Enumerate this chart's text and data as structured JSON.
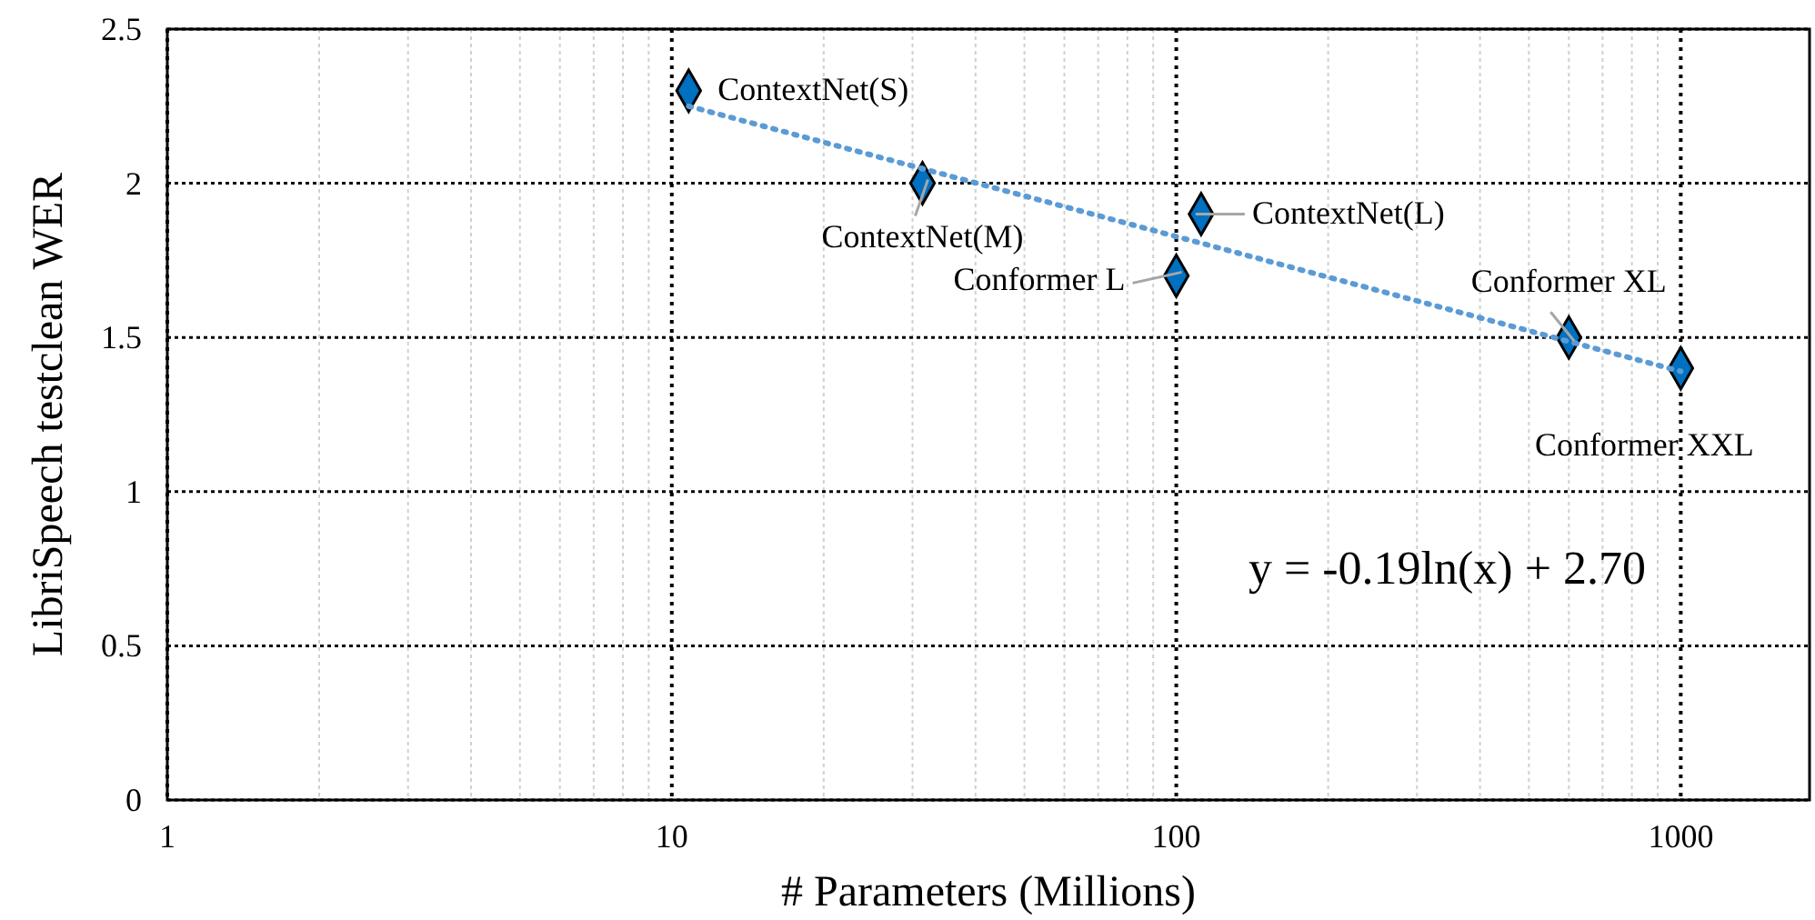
{
  "chart_data": {
    "type": "scatter",
    "xlabel": "# Parameters (Millions)",
    "ylabel": "LibriSpeech testclean WER",
    "log": "x",
    "grid": true,
    "marker": "diamond",
    "xlim": [
      1,
      1800
    ],
    "xticks": [
      1,
      10,
      100,
      1000
    ],
    "ylim": [
      0,
      2.5
    ],
    "yticks": [
      0,
      0.5,
      1,
      1.5,
      2,
      2.5
    ],
    "series": [
      {
        "color": "#0070c0",
        "x": [
          10.8,
          31.4,
          100,
          112,
          600,
          1000
        ],
        "values": [
          2.3,
          2.0,
          1.7,
          1.9,
          1.5,
          1.4
        ]
      },
      {
        "type": "line",
        "color": "#5b9bd5",
        "line_style": "dotted",
        "marker": "none",
        "x": [
          10.8,
          1000
        ],
        "values": [
          2.25,
          1.39
        ]
      }
    ],
    "annotations": [
      {
        "text": "ContextNet(S)",
        "x": 10.8,
        "y": 2.3
      },
      {
        "text": "ContextNet(M)",
        "x": 31.4,
        "y": 2.0
      },
      {
        "text": "Conformer L",
        "x": 100,
        "y": 1.7
      },
      {
        "text": "ContextNet(L)",
        "x": 112,
        "y": 1.9
      },
      {
        "text": "Conformer XL",
        "x": 600,
        "y": 1.5
      },
      {
        "text": "Conformer XXL",
        "x": 1000,
        "y": 1.4
      },
      "y = -0.19ln(x) + 2.70"
    ]
  }
}
